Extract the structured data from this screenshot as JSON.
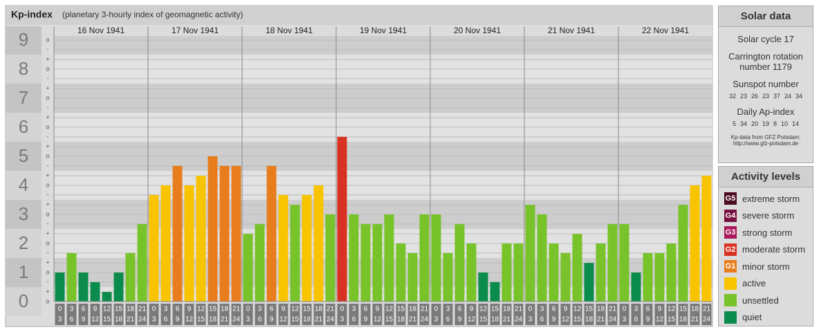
{
  "chart_data": {
    "type": "bar",
    "title": "Kp-index",
    "subtitle": "(planetary 3-hourly index of geomagnetic activity)",
    "days": [
      "16 Nov 1941",
      "17 Nov 1941",
      "18 Nov 1941",
      "19 Nov 1941",
      "20 Nov 1941",
      "21 Nov 1941",
      "22 Nov 1941"
    ],
    "time_slots": [
      [
        "0",
        "3"
      ],
      [
        "3",
        "6"
      ],
      [
        "6",
        "9"
      ],
      [
        "9",
        "12"
      ],
      [
        "12",
        "15"
      ],
      [
        "15",
        "18"
      ],
      [
        "18",
        "21"
      ],
      [
        "21",
        "24"
      ]
    ],
    "values": [
      1,
      1.67,
      1,
      0.67,
      0.33,
      1,
      1.67,
      2.67,
      3.67,
      4,
      4.67,
      4,
      4.33,
      5,
      4.67,
      4.67,
      2.33,
      2.67,
      4.67,
      3.67,
      3.33,
      3.67,
      4,
      3,
      5.67,
      3,
      2.67,
      2.67,
      3,
      2,
      1.67,
      3,
      3,
      1.67,
      2.67,
      2,
      1,
      0.67,
      2,
      2,
      3.33,
      3,
      2,
      1.67,
      2.33,
      1.33,
      2,
      2.67,
      2.67,
      1,
      1.67,
      1.67,
      2,
      3.33,
      4,
      4.33
    ],
    "colors": [
      "#0c8c4c",
      "#78c22a",
      "#0c8c4c",
      "#0c8c4c",
      "#0c8c4c",
      "#0c8c4c",
      "#78c22a",
      "#78c22a",
      "#f8c400",
      "#f8c400",
      "#e87d1e",
      "#f8c400",
      "#f8c400",
      "#e87d1e",
      "#e87d1e",
      "#e87d1e",
      "#78c22a",
      "#78c22a",
      "#e87d1e",
      "#f8c400",
      "#78c22a",
      "#f8c400",
      "#f8c400",
      "#78c22a",
      "#d83222",
      "#78c22a",
      "#78c22a",
      "#78c22a",
      "#78c22a",
      "#78c22a",
      "#78c22a",
      "#78c22a",
      "#78c22a",
      "#78c22a",
      "#78c22a",
      "#78c22a",
      "#0c8c4c",
      "#0c8c4c",
      "#78c22a",
      "#78c22a",
      "#78c22a",
      "#78c22a",
      "#78c22a",
      "#78c22a",
      "#78c22a",
      "#0c8c4c",
      "#78c22a",
      "#78c22a",
      "#78c22a",
      "#0c8c4c",
      "#78c22a",
      "#78c22a",
      "#78c22a",
      "#78c22a",
      "#f8c400",
      "#f8c400"
    ],
    "ylim": [
      0,
      9
    ],
    "yticks": [
      0,
      1,
      2,
      3,
      4,
      5,
      6,
      7,
      8,
      9
    ],
    "minor_yticks": [
      {
        "value": 0,
        "label": "o"
      },
      {
        "value": 0.33,
        "label": "+"
      },
      {
        "value": 0.67,
        "label": "-"
      },
      {
        "value": 1,
        "label": "o"
      },
      {
        "value": 1.33,
        "label": "+"
      },
      {
        "value": 1.67,
        "label": "-"
      },
      {
        "value": 2,
        "label": "o"
      },
      {
        "value": 2.33,
        "label": "+"
      },
      {
        "value": 2.67,
        "label": "-"
      },
      {
        "value": 3,
        "label": "o"
      },
      {
        "value": 3.33,
        "label": "+"
      },
      {
        "value": 3.67,
        "label": "-"
      },
      {
        "value": 4,
        "label": "o"
      },
      {
        "value": 4.33,
        "label": "+"
      },
      {
        "value": 4.67,
        "label": "-"
      },
      {
        "value": 5,
        "label": "o"
      },
      {
        "value": 5.33,
        "label": "+"
      },
      {
        "value": 5.67,
        "label": "-"
      },
      {
        "value": 6,
        "label": "o"
      },
      {
        "value": 6.33,
        "label": "+"
      },
      {
        "value": 6.67,
        "label": "-"
      },
      {
        "value": 7,
        "label": "o"
      },
      {
        "value": 7.33,
        "label": "+"
      },
      {
        "value": 7.67,
        "label": "-"
      },
      {
        "value": 8,
        "label": "o"
      },
      {
        "value": 8.33,
        "label": "+"
      },
      {
        "value": 8.67,
        "label": "-"
      },
      {
        "value": 9,
        "label": "o"
      }
    ],
    "grid": true
  },
  "solar_data": {
    "title": "Solar data",
    "cycle": "Solar cycle 17",
    "carrington": "Carrington rotation number 1179",
    "sunspot_label": "Sunspot number",
    "sunspot_numbers": [
      32,
      23,
      26,
      23,
      37,
      24,
      34
    ],
    "ap_label": "Daily Ap-index",
    "ap_values": [
      5,
      34,
      20,
      19,
      8,
      10,
      14
    ],
    "source": "Kp-data from GFZ Potsdam:",
    "source_url": "http://www.gfz-potsdam.de"
  },
  "activity_levels": {
    "title": "Activity levels",
    "items": [
      {
        "badge": "G5",
        "label": "extreme storm",
        "color": "#4a0a22"
      },
      {
        "badge": "G4",
        "label": "severe storm",
        "color": "#78103e"
      },
      {
        "badge": "G3",
        "label": "strong storm",
        "color": "#a8185a"
      },
      {
        "badge": "G2",
        "label": "moderate storm",
        "color": "#d83222"
      },
      {
        "badge": "G1",
        "label": "minor storm",
        "color": "#e87d1e"
      },
      {
        "label": "active",
        "color": "#f8c400"
      },
      {
        "label": "unsettled",
        "color": "#78c22a"
      },
      {
        "label": "quiet",
        "color": "#0c8c4c"
      }
    ]
  }
}
